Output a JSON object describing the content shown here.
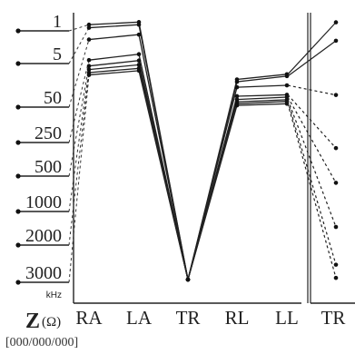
{
  "chart_data": {
    "type": "line",
    "frequency_scale": {
      "labels": [
        "1",
        "5",
        "50",
        "250",
        "500",
        "1000",
        "2000",
        "3000"
      ],
      "unit": "kHz"
    },
    "categories": [
      "RA",
      "LA",
      "TR",
      "RL",
      "LL"
    ],
    "right_panel_category": "TR",
    "ylabel_main": "Z",
    "ylabel_unit": "(Ω)",
    "series": [
      {
        "frequency": "1",
        "values": [
          0.2,
          0.09,
          11.0,
          2.52,
          2.3
        ],
        "tr_value": 0.1
      },
      {
        "frequency": "5",
        "values": [
          0.33,
          0.2,
          11.0,
          2.62,
          2.38
        ],
        "tr_value": 0.88
      },
      {
        "frequency": "50",
        "values": [
          0.83,
          0.62,
          11.0,
          2.85,
          2.77
        ],
        "tr_value": 3.18
      },
      {
        "frequency": "250",
        "values": [
          1.7,
          1.45,
          11.0,
          3.23,
          3.17
        ],
        "tr_value": 5.43
      },
      {
        "frequency": "500",
        "values": [
          1.95,
          1.72,
          11.0,
          3.37,
          3.27
        ],
        "tr_value": 6.9
      },
      {
        "frequency": "1000",
        "values": [
          2.1,
          1.9,
          11.0,
          3.47,
          3.38
        ],
        "tr_value": 8.77
      },
      {
        "frequency": "2000",
        "values": [
          2.23,
          2.05,
          11.0,
          3.55,
          3.45
        ],
        "tr_value": 10.37
      },
      {
        "frequency": "3000",
        "values": [
          2.33,
          2.15,
          11.0,
          3.62,
          3.55
        ],
        "tr_value": 10.93
      }
    ],
    "grid": false
  },
  "footer": {
    "text": "[000/000/000]"
  }
}
